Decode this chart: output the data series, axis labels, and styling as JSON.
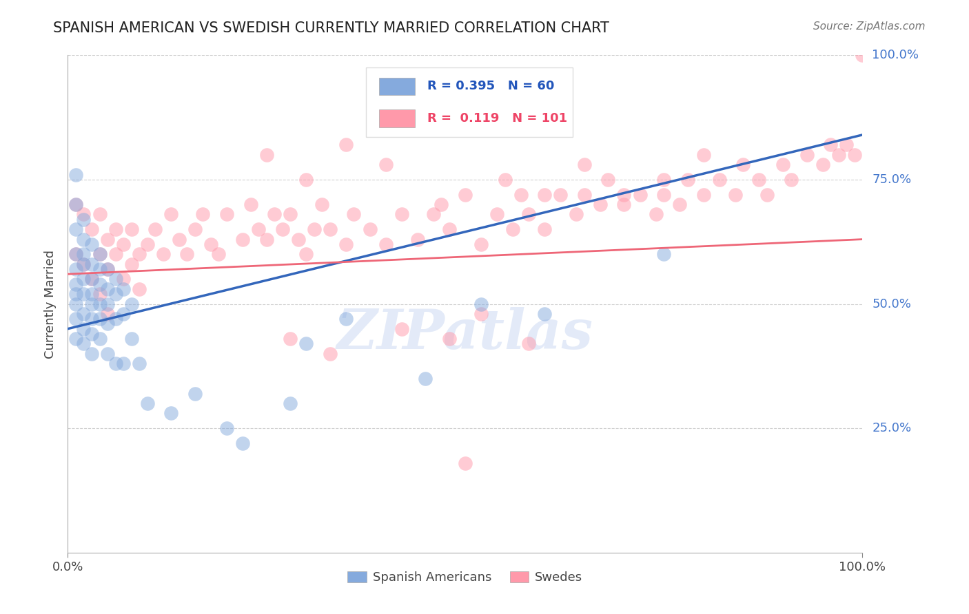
{
  "title": "SPANISH AMERICAN VS SWEDISH CURRENTLY MARRIED CORRELATION CHART",
  "source_text": "Source: ZipAtlas.com",
  "ylabel": "Currently Married",
  "blue_R": 0.395,
  "blue_N": 60,
  "pink_R": 0.119,
  "pink_N": 101,
  "blue_color": "#85AADD",
  "pink_color": "#FF99AA",
  "blue_line_color": "#3366BB",
  "pink_line_color": "#EE6677",
  "legend_label_blue": "Spanish Americans",
  "legend_label_pink": "Swedes",
  "xlim": [
    0,
    1
  ],
  "ylim": [
    0,
    1
  ],
  "ytick_labels": [
    "25.0%",
    "50.0%",
    "75.0%",
    "100.0%"
  ],
  "ytick_values": [
    0.25,
    0.5,
    0.75,
    1.0
  ],
  "right_ytick_extra": {
    "val": 1.0,
    "label": "100.0%"
  },
  "watermark": "ZIPatlas",
  "blue_line": [
    0,
    0.45,
    1,
    0.84
  ],
  "pink_line": [
    0,
    0.56,
    1,
    0.63
  ],
  "blue_scatter_x": [
    0.01,
    0.01,
    0.01,
    0.01,
    0.01,
    0.01,
    0.01,
    0.01,
    0.01,
    0.01,
    0.02,
    0.02,
    0.02,
    0.02,
    0.02,
    0.02,
    0.02,
    0.02,
    0.02,
    0.03,
    0.03,
    0.03,
    0.03,
    0.03,
    0.03,
    0.03,
    0.03,
    0.04,
    0.04,
    0.04,
    0.04,
    0.04,
    0.04,
    0.05,
    0.05,
    0.05,
    0.05,
    0.05,
    0.06,
    0.06,
    0.06,
    0.06,
    0.07,
    0.07,
    0.07,
    0.08,
    0.08,
    0.09,
    0.1,
    0.13,
    0.16,
    0.2,
    0.22,
    0.28,
    0.3,
    0.35,
    0.45,
    0.52,
    0.6,
    0.75
  ],
  "blue_scatter_y": [
    0.76,
    0.7,
    0.65,
    0.6,
    0.57,
    0.54,
    0.52,
    0.5,
    0.47,
    0.43,
    0.67,
    0.63,
    0.6,
    0.58,
    0.55,
    0.52,
    0.48,
    0.45,
    0.42,
    0.62,
    0.58,
    0.55,
    0.52,
    0.5,
    0.47,
    0.44,
    0.4,
    0.6,
    0.57,
    0.54,
    0.5,
    0.47,
    0.43,
    0.57,
    0.53,
    0.5,
    0.46,
    0.4,
    0.55,
    0.52,
    0.47,
    0.38,
    0.53,
    0.48,
    0.38,
    0.5,
    0.43,
    0.38,
    0.3,
    0.28,
    0.32,
    0.25,
    0.22,
    0.3,
    0.42,
    0.47,
    0.35,
    0.5,
    0.48,
    0.6
  ],
  "pink_scatter_x": [
    0.01,
    0.01,
    0.02,
    0.02,
    0.03,
    0.03,
    0.04,
    0.04,
    0.04,
    0.05,
    0.05,
    0.05,
    0.06,
    0.06,
    0.07,
    0.07,
    0.08,
    0.08,
    0.09,
    0.09,
    0.1,
    0.11,
    0.12,
    0.13,
    0.14,
    0.15,
    0.16,
    0.17,
    0.18,
    0.19,
    0.2,
    0.22,
    0.23,
    0.24,
    0.25,
    0.26,
    0.27,
    0.28,
    0.29,
    0.3,
    0.31,
    0.32,
    0.33,
    0.35,
    0.36,
    0.38,
    0.4,
    0.42,
    0.44,
    0.46,
    0.47,
    0.48,
    0.5,
    0.52,
    0.54,
    0.56,
    0.57,
    0.58,
    0.6,
    0.62,
    0.64,
    0.65,
    0.67,
    0.68,
    0.7,
    0.72,
    0.74,
    0.75,
    0.77,
    0.78,
    0.8,
    0.82,
    0.84,
    0.85,
    0.87,
    0.88,
    0.9,
    0.91,
    0.93,
    0.95,
    0.96,
    0.97,
    0.98,
    0.99,
    1.0,
    0.25,
    0.3,
    0.35,
    0.4,
    0.5,
    0.55,
    0.6,
    0.65,
    0.7,
    0.75,
    0.8,
    0.28,
    0.33,
    0.42,
    0.48,
    0.52,
    0.58
  ],
  "pink_scatter_y": [
    0.7,
    0.6,
    0.68,
    0.58,
    0.65,
    0.55,
    0.68,
    0.6,
    0.52,
    0.63,
    0.57,
    0.48,
    0.6,
    0.65,
    0.62,
    0.55,
    0.65,
    0.58,
    0.6,
    0.53,
    0.62,
    0.65,
    0.6,
    0.68,
    0.63,
    0.6,
    0.65,
    0.68,
    0.62,
    0.6,
    0.68,
    0.63,
    0.7,
    0.65,
    0.63,
    0.68,
    0.65,
    0.68,
    0.63,
    0.6,
    0.65,
    0.7,
    0.65,
    0.62,
    0.68,
    0.65,
    0.62,
    0.68,
    0.63,
    0.68,
    0.7,
    0.65,
    0.18,
    0.62,
    0.68,
    0.65,
    0.72,
    0.68,
    0.65,
    0.72,
    0.68,
    0.72,
    0.7,
    0.75,
    0.7,
    0.72,
    0.68,
    0.72,
    0.7,
    0.75,
    0.72,
    0.75,
    0.72,
    0.78,
    0.75,
    0.72,
    0.78,
    0.75,
    0.8,
    0.78,
    0.82,
    0.8,
    0.82,
    0.8,
    1.0,
    0.8,
    0.75,
    0.82,
    0.78,
    0.72,
    0.75,
    0.72,
    0.78,
    0.72,
    0.75,
    0.8,
    0.43,
    0.4,
    0.45,
    0.43,
    0.48,
    0.42
  ]
}
